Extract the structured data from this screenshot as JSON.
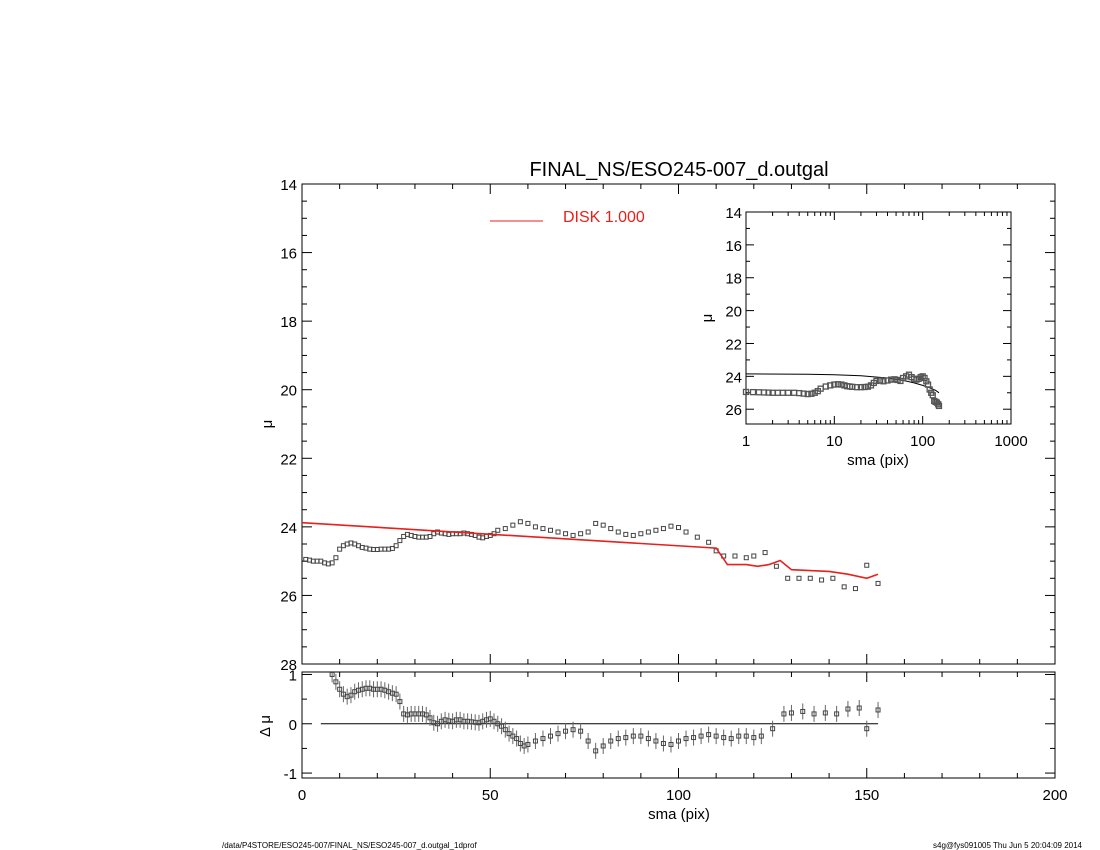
{
  "chart_data": [
    {
      "panel": "main",
      "type": "scatter",
      "title": "FINAL_NS/ESO245-007_d.outgal",
      "xlabel": "",
      "ylabel": "μ",
      "xlim": [
        0,
        200
      ],
      "ylim": [
        28,
        14
      ],
      "y_inverted": true,
      "xticks": [
        "0",
        "50",
        "100",
        "150",
        "200"
      ],
      "yticks": [
        "14",
        "16",
        "18",
        "20",
        "22",
        "24",
        "26",
        "28"
      ],
      "legend": {
        "position": "top-center",
        "label": "DISK  1.000",
        "color": "#e8201c"
      },
      "series": [
        {
          "name": "",
          "kind": "points",
          "x": [
            1,
            2,
            3,
            4,
            5,
            6,
            7,
            8,
            9,
            10,
            11,
            12,
            13,
            14,
            15,
            16,
            17,
            18,
            19,
            20,
            21,
            22,
            23,
            24,
            25,
            26,
            27,
            28,
            29,
            30,
            31,
            32,
            33,
            34,
            35,
            36,
            37,
            38,
            39,
            40,
            41,
            42,
            43,
            44,
            45,
            46,
            47,
            48,
            49,
            50,
            51,
            52,
            54,
            56,
            58,
            60,
            62,
            64,
            66,
            68,
            70,
            72,
            74,
            76,
            78,
            80,
            82,
            84,
            86,
            88,
            90,
            92,
            94,
            96,
            98,
            100,
            102,
            105,
            108,
            110,
            112,
            115,
            118,
            120,
            123,
            126,
            129,
            132,
            135,
            138,
            141,
            144,
            147,
            150,
            153
          ],
          "y": [
            24.95,
            24.97,
            25.0,
            25.0,
            25.0,
            25.05,
            25.08,
            25.05,
            24.9,
            24.65,
            24.55,
            24.5,
            24.47,
            24.5,
            24.55,
            24.6,
            24.62,
            24.65,
            24.66,
            24.66,
            24.65,
            24.65,
            24.65,
            24.63,
            24.55,
            24.4,
            24.28,
            24.22,
            24.25,
            24.28,
            24.3,
            24.3,
            24.3,
            24.28,
            24.2,
            24.15,
            24.18,
            24.2,
            24.22,
            24.2,
            24.2,
            24.2,
            24.18,
            24.2,
            24.22,
            24.25,
            24.3,
            24.32,
            24.28,
            24.25,
            24.2,
            24.1,
            24.05,
            23.95,
            23.85,
            23.9,
            24.0,
            24.05,
            24.1,
            24.15,
            24.2,
            24.25,
            24.2,
            24.15,
            23.9,
            23.95,
            24.05,
            24.15,
            24.22,
            24.25,
            24.2,
            24.15,
            24.1,
            24.05,
            23.98,
            24.02,
            24.15,
            24.3,
            24.45,
            24.7,
            24.85,
            24.85,
            24.9,
            24.85,
            24.75,
            25.15,
            25.5,
            25.5,
            25.5,
            25.55,
            25.5,
            25.75,
            25.8,
            25.12,
            25.65
          ]
        },
        {
          "name": "DISK  1.000",
          "kind": "line",
          "color": "#e8201c",
          "x": [
            0,
            110,
            113,
            118,
            121,
            124,
            127,
            130,
            140,
            145,
            150,
            153
          ],
          "y": [
            23.88,
            24.62,
            25.1,
            25.1,
            25.15,
            25.1,
            24.98,
            25.25,
            25.3,
            25.38,
            25.5,
            25.38
          ]
        }
      ]
    },
    {
      "panel": "residual",
      "type": "scatter",
      "title": "",
      "xlabel": "sma (pix)",
      "ylabel": "Δ μ",
      "xlim": [
        0,
        200
      ],
      "ylim": [
        -1.1,
        1.05
      ],
      "xticks": [
        "0",
        "50",
        "100",
        "150",
        "200"
      ],
      "yticks": [
        "1",
        "0",
        "-1"
      ],
      "reference_line": 0,
      "series": [
        {
          "name": "",
          "x": [
            8,
            9,
            10,
            11,
            12,
            13,
            14,
            15,
            16,
            17,
            18,
            19,
            20,
            21,
            22,
            23,
            24,
            25,
            26,
            27,
            28,
            29,
            30,
            31,
            32,
            33,
            34,
            35,
            36,
            37,
            38,
            39,
            40,
            41,
            42,
            43,
            44,
            45,
            46,
            47,
            48,
            49,
            50,
            51,
            52,
            53,
            54,
            55,
            56,
            57,
            58,
            59,
            60,
            62,
            64,
            66,
            68,
            70,
            72,
            74,
            76,
            78,
            80,
            82,
            84,
            86,
            88,
            90,
            92,
            94,
            96,
            98,
            100,
            102,
            104,
            106,
            108,
            110,
            112,
            114,
            116,
            118,
            120,
            122,
            125,
            128,
            130,
            133,
            136,
            139,
            142,
            145,
            148,
            150,
            153
          ],
          "y": [
            1.0,
            0.85,
            0.7,
            0.6,
            0.55,
            0.58,
            0.65,
            0.68,
            0.7,
            0.72,
            0.72,
            0.7,
            0.7,
            0.7,
            0.68,
            0.65,
            0.62,
            0.6,
            0.45,
            0.2,
            0.18,
            0.2,
            0.2,
            0.2,
            0.2,
            0.18,
            0.12,
            0.02,
            0.0,
            0.05,
            0.08,
            0.06,
            0.05,
            0.08,
            0.08,
            0.05,
            0.05,
            0.04,
            0.03,
            0.02,
            0.05,
            0.08,
            0.1,
            0.05,
            0.0,
            -0.05,
            -0.12,
            -0.2,
            -0.25,
            -0.3,
            -0.4,
            -0.45,
            -0.42,
            -0.35,
            -0.3,
            -0.25,
            -0.2,
            -0.15,
            -0.12,
            -0.15,
            -0.35,
            -0.55,
            -0.45,
            -0.35,
            -0.3,
            -0.28,
            -0.25,
            -0.25,
            -0.3,
            -0.35,
            -0.4,
            -0.42,
            -0.35,
            -0.3,
            -0.28,
            -0.25,
            -0.22,
            -0.25,
            -0.28,
            -0.3,
            -0.25,
            -0.25,
            -0.28,
            -0.25,
            -0.1,
            0.2,
            0.22,
            0.25,
            0.2,
            0.22,
            0.2,
            0.3,
            0.32,
            -0.1,
            0.28
          ]
        }
      ]
    },
    {
      "panel": "inset",
      "type": "scatter",
      "title": "",
      "xlabel": "sma (pix)",
      "ylabel": "μ",
      "xscale": "log",
      "xlim": [
        1,
        1000
      ],
      "ylim": [
        28,
        14
      ],
      "xticks": [
        "1",
        "10",
        "100",
        "1000"
      ],
      "yticks": [
        "14",
        "16",
        "18",
        "20",
        "22",
        "24",
        "26"
      ],
      "series": [
        {
          "name": "",
          "kind": "points",
          "x": [
            1,
            1.2,
            1.4,
            1.6,
            1.8,
            2,
            2.3,
            2.6,
            3,
            3.5,
            4,
            4.5,
            5,
            5.5,
            6,
            6.5,
            7,
            8,
            9,
            10,
            11,
            12,
            13,
            14,
            15,
            16,
            18,
            20,
            22,
            24,
            26,
            28,
            30,
            33,
            36,
            40,
            44,
            48,
            52,
            56,
            60,
            65,
            70,
            75,
            80,
            85,
            90,
            95,
            100,
            105,
            110,
            115,
            120,
            125,
            130,
            135,
            140,
            145,
            150,
            153
          ],
          "y": [
            24.95,
            24.96,
            24.97,
            24.98,
            24.99,
            25.0,
            25.0,
            25.0,
            25.0,
            25.0,
            25.02,
            25.05,
            25.08,
            25.06,
            25.0,
            24.9,
            24.75,
            24.62,
            24.55,
            24.5,
            24.48,
            24.5,
            24.55,
            24.6,
            24.62,
            24.64,
            24.66,
            24.66,
            24.65,
            24.63,
            24.55,
            24.4,
            24.28,
            24.25,
            24.3,
            24.25,
            24.2,
            24.18,
            24.22,
            24.28,
            24.1,
            24.0,
            23.9,
            24.05,
            24.15,
            24.2,
            24.15,
            24.05,
            24.0,
            24.1,
            24.3,
            24.5,
            24.8,
            25.0,
            25.15,
            25.5,
            25.55,
            25.6,
            25.7,
            25.8
          ]
        },
        {
          "name": "",
          "kind": "line",
          "x": [
            1,
            5,
            10,
            20,
            40,
            60,
            80,
            100,
            120,
            140,
            153
          ],
          "y": [
            23.85,
            23.87,
            23.9,
            23.97,
            24.1,
            24.25,
            24.4,
            24.55,
            24.7,
            24.85,
            25.0
          ]
        }
      ]
    }
  ],
  "footer": {
    "left": "/data/P4STORE/ESO245-007/FINAL_NS/ESO245-007_d.outgal_1dprof",
    "right": "s4g@fys091005  Thu Jun  5 20:04:09 2014"
  }
}
